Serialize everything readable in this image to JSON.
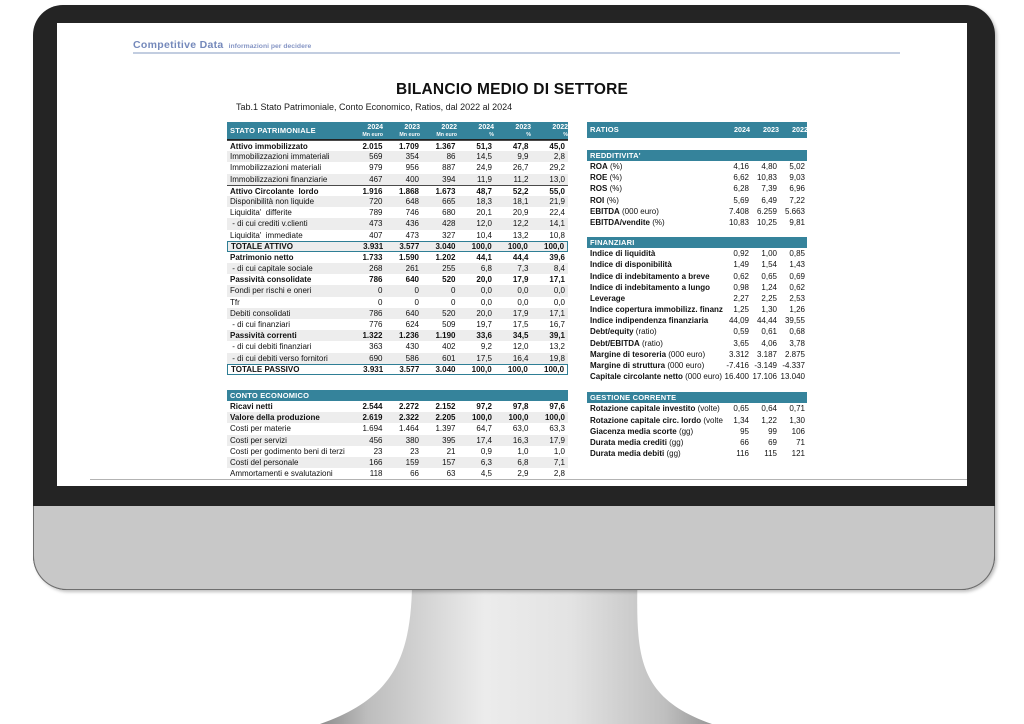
{
  "brand": {
    "name": "Competitive Data",
    "tagline": "informazioni per decidere"
  },
  "page": {
    "title": "BILANCIO MEDIO DI SETTORE",
    "subtitle": "Tab.1 Stato Patrimoniale, Conto Economico, Ratios, dal 2022 al 2024"
  },
  "colors": {
    "teal_band": "#35839b",
    "stripe": "#ededed",
    "logo_blue": "#7589bb",
    "bezel": "#242424",
    "chin_gray": "#c8c8c8"
  },
  "stato_patrimoniale": {
    "title": "STATO PATRIMONIALE",
    "col_years": [
      "2024",
      "2023",
      "2022",
      "2024",
      "2023",
      "2022"
    ],
    "col_units": [
      "Mn euro",
      "Mn euro",
      "Mn euro",
      "%",
      "%",
      "%"
    ],
    "rows": [
      {
        "label": "Attivo immobilizzato",
        "bold": true,
        "cls": "btop",
        "values": [
          "2.015",
          "1.709",
          "1.367",
          "51,3",
          "47,8",
          "45,0"
        ]
      },
      {
        "label": "Immobilizzazioni immateriali",
        "bold": false,
        "cls": "",
        "values": [
          "569",
          "354",
          "86",
          "14,5",
          "9,9",
          "2,8"
        ]
      },
      {
        "label": "Immobilizzazioni materiali",
        "bold": false,
        "cls": "",
        "values": [
          "979",
          "956",
          "887",
          "24,9",
          "26,7",
          "29,2"
        ]
      },
      {
        "label": "Immobilizzazioni finanziarie",
        "bold": false,
        "cls": "",
        "values": [
          "467",
          "400",
          "394",
          "11,9",
          "11,2",
          "13,0"
        ]
      },
      {
        "label": "Attivo Circolante  lordo",
        "bold": true,
        "cls": "btop",
        "values": [
          "1.916",
          "1.868",
          "1.673",
          "48,7",
          "52,2",
          "55,0"
        ]
      },
      {
        "label": "Disponibilità non liquide",
        "bold": false,
        "cls": "",
        "values": [
          "720",
          "648",
          "665",
          "18,3",
          "18,1",
          "21,9"
        ]
      },
      {
        "label": "Liquidita'  differite",
        "bold": false,
        "cls": "",
        "values": [
          "789",
          "746",
          "680",
          "20,1",
          "20,9",
          "22,4"
        ]
      },
      {
        "label": " - di cui crediti v.clienti",
        "bold": false,
        "cls": "",
        "values": [
          "473",
          "436",
          "428",
          "12,0",
          "12,2",
          "14,1"
        ]
      },
      {
        "label": "Liquidita'  immediate",
        "bold": false,
        "cls": "",
        "values": [
          "407",
          "473",
          "327",
          "10,4",
          "13,2",
          "10,8"
        ]
      },
      {
        "label": "TOTALE ATTIVO",
        "bold": true,
        "cls": "box",
        "values": [
          "3.931",
          "3.577",
          "3.040",
          "100,0",
          "100,0",
          "100,0"
        ]
      },
      {
        "label": "Patrimonio netto",
        "bold": true,
        "cls": "",
        "values": [
          "1.733",
          "1.590",
          "1.202",
          "44,1",
          "44,4",
          "39,6"
        ]
      },
      {
        "label": " - di cui capitale sociale",
        "bold": false,
        "cls": "",
        "values": [
          "268",
          "261",
          "255",
          "6,8",
          "7,3",
          "8,4"
        ]
      },
      {
        "label": "Passività consolidate",
        "bold": true,
        "cls": "",
        "values": [
          "786",
          "640",
          "520",
          "20,0",
          "17,9",
          "17,1"
        ]
      },
      {
        "label": "Fondi per rischi e oneri",
        "bold": false,
        "cls": "",
        "values": [
          "0",
          "0",
          "0",
          "0,0",
          "0,0",
          "0,0"
        ]
      },
      {
        "label": "Tfr",
        "bold": false,
        "cls": "",
        "values": [
          "0",
          "0",
          "0",
          "0,0",
          "0,0",
          "0,0"
        ]
      },
      {
        "label": "Debiti consolidati",
        "bold": false,
        "cls": "",
        "values": [
          "786",
          "640",
          "520",
          "20,0",
          "17,9",
          "17,1"
        ]
      },
      {
        "label": " - di cui finanziari",
        "bold": false,
        "cls": "",
        "values": [
          "776",
          "624",
          "509",
          "19,7",
          "17,5",
          "16,7"
        ]
      },
      {
        "label": "Passività correnti",
        "bold": true,
        "cls": "",
        "values": [
          "1.322",
          "1.236",
          "1.190",
          "33,6",
          "34,5",
          "39,1"
        ]
      },
      {
        "label": " - di cui debiti finanziari",
        "bold": false,
        "cls": "",
        "values": [
          "363",
          "430",
          "402",
          "9,2",
          "12,0",
          "13,2"
        ]
      },
      {
        "label": " - di cui debiti verso fornitori",
        "bold": false,
        "cls": "",
        "values": [
          "690",
          "586",
          "601",
          "17,5",
          "16,4",
          "19,8"
        ]
      },
      {
        "label": "TOTALE PASSIVO",
        "bold": true,
        "cls": "box",
        "values": [
          "3.931",
          "3.577",
          "3.040",
          "100,0",
          "100,0",
          "100,0"
        ]
      }
    ]
  },
  "conto_economico": {
    "title": "CONTO ECONOMICO",
    "rows": [
      {
        "label": "Ricavi netti",
        "bold": true,
        "cls": "",
        "values": [
          "2.544",
          "2.272",
          "2.152",
          "97,2",
          "97,8",
          "97,6"
        ]
      },
      {
        "label": "Valore della produzione",
        "bold": true,
        "cls": "",
        "values": [
          "2.619",
          "2.322",
          "2.205",
          "100,0",
          "100,0",
          "100,0"
        ]
      },
      {
        "label": "Costi per materie",
        "bold": false,
        "cls": "",
        "values": [
          "1.694",
          "1.464",
          "1.397",
          "64,7",
          "63,0",
          "63,3"
        ]
      },
      {
        "label": "Costi per servizi",
        "bold": false,
        "cls": "",
        "values": [
          "456",
          "380",
          "395",
          "17,4",
          "16,3",
          "17,9"
        ]
      },
      {
        "label": "Costi per godimento beni di terzi",
        "bold": false,
        "cls": "",
        "values": [
          "23",
          "23",
          "21",
          "0,9",
          "1,0",
          "1,0"
        ]
      },
      {
        "label": "Costi del personale",
        "bold": false,
        "cls": "",
        "values": [
          "166",
          "159",
          "157",
          "6,3",
          "6,8",
          "7,1"
        ]
      },
      {
        "label": "Ammortamenti e svalutazioni",
        "bold": false,
        "cls": "",
        "values": [
          "118",
          "66",
          "63",
          "4,5",
          "2,9",
          "2,8"
        ]
      }
    ]
  },
  "ratios": {
    "title": "RATIOS",
    "years": [
      "2024",
      "2023",
      "2022"
    ],
    "sections": [
      {
        "key": "redd",
        "title": "REDDITIVITA'",
        "rows": [
          {
            "name": "ROA",
            "suffix": "(%)",
            "values": [
              "4,16",
              "4,80",
              "5,02"
            ]
          },
          {
            "name": "ROE",
            "suffix": "(%)",
            "values": [
              "6,62",
              "10,83",
              "9,03"
            ]
          },
          {
            "name": "ROS",
            "suffix": "(%)",
            "values": [
              "6,28",
              "7,39",
              "6,96"
            ]
          },
          {
            "name": "ROI",
            "suffix": "(%)",
            "values": [
              "5,69",
              "6,49",
              "7,22"
            ]
          },
          {
            "name": "EBITDA",
            "suffix": "(000 euro)",
            "values": [
              "7.408",
              "6.259",
              "5.663"
            ]
          },
          {
            "name": "EBITDA/vendite",
            "suffix": "(%)",
            "values": [
              "10,83",
              "10,25",
              "9,81"
            ]
          }
        ]
      },
      {
        "key": "fin",
        "title": "FINANZIARI",
        "rows": [
          {
            "name": "Indice di liquidità",
            "suffix": "",
            "values": [
              "0,92",
              "1,00",
              "0,85"
            ]
          },
          {
            "name": "Indice di disponibilità",
            "suffix": "",
            "values": [
              "1,49",
              "1,54",
              "1,43"
            ]
          },
          {
            "name": "Indice di indebitamento a breve",
            "suffix": "",
            "values": [
              "0,62",
              "0,65",
              "0,69"
            ]
          },
          {
            "name": "Indice di indebitamento a lungo",
            "suffix": "",
            "values": [
              "0,98",
              "1,24",
              "0,62"
            ]
          },
          {
            "name": "Leverage",
            "suffix": "",
            "values": [
              "2,27",
              "2,25",
              "2,53"
            ]
          },
          {
            "name": "Indice copertura immobilizz. finanziarie",
            "suffix": "",
            "values": [
              "1,25",
              "1,30",
              "1,26"
            ]
          },
          {
            "name": "Indice indipendenza finanziaria",
            "suffix": "",
            "values": [
              "44,09",
              "44,44",
              "39,55"
            ]
          },
          {
            "name": "Debt/equity",
            "suffix": "(ratio)",
            "values": [
              "0,59",
              "0,61",
              "0,68"
            ]
          },
          {
            "name": "Debt/EBITDA",
            "suffix": "(ratio)",
            "values": [
              "3,65",
              "4,06",
              "3,78"
            ]
          },
          {
            "name": "Margine di tesoreria",
            "suffix": "(000 euro)",
            "values": [
              "3.312",
              "3.187",
              "2.875"
            ]
          },
          {
            "name": "Margine di struttura",
            "suffix": "(000 euro)",
            "values": [
              "-7.416",
              "-3.149",
              "-4.337"
            ]
          },
          {
            "name": "Capitale circolante netto",
            "suffix": "(000 euro)",
            "values": [
              "16.400",
              "17.106",
              "13.040"
            ]
          }
        ]
      },
      {
        "key": "gest",
        "title": "GESTIONE CORRENTE",
        "rows": [
          {
            "name": "Rotazione capitale investito",
            "suffix": "(volte)",
            "values": [
              "0,65",
              "0,64",
              "0,71"
            ]
          },
          {
            "name": "Rotazione capitale circ. lordo",
            "suffix": "(volte)",
            "values": [
              "1,34",
              "1,22",
              "1,30"
            ]
          },
          {
            "name": "Giacenza media scorte",
            "suffix": "(gg)",
            "values": [
              "95",
              "99",
              "106"
            ]
          },
          {
            "name": "Durata media crediti",
            "suffix": "(gg)",
            "values": [
              "66",
              "69",
              "71"
            ]
          },
          {
            "name": "Durata media debiti",
            "suffix": "(gg)",
            "values": [
              "116",
              "115",
              "121"
            ]
          }
        ]
      }
    ]
  }
}
